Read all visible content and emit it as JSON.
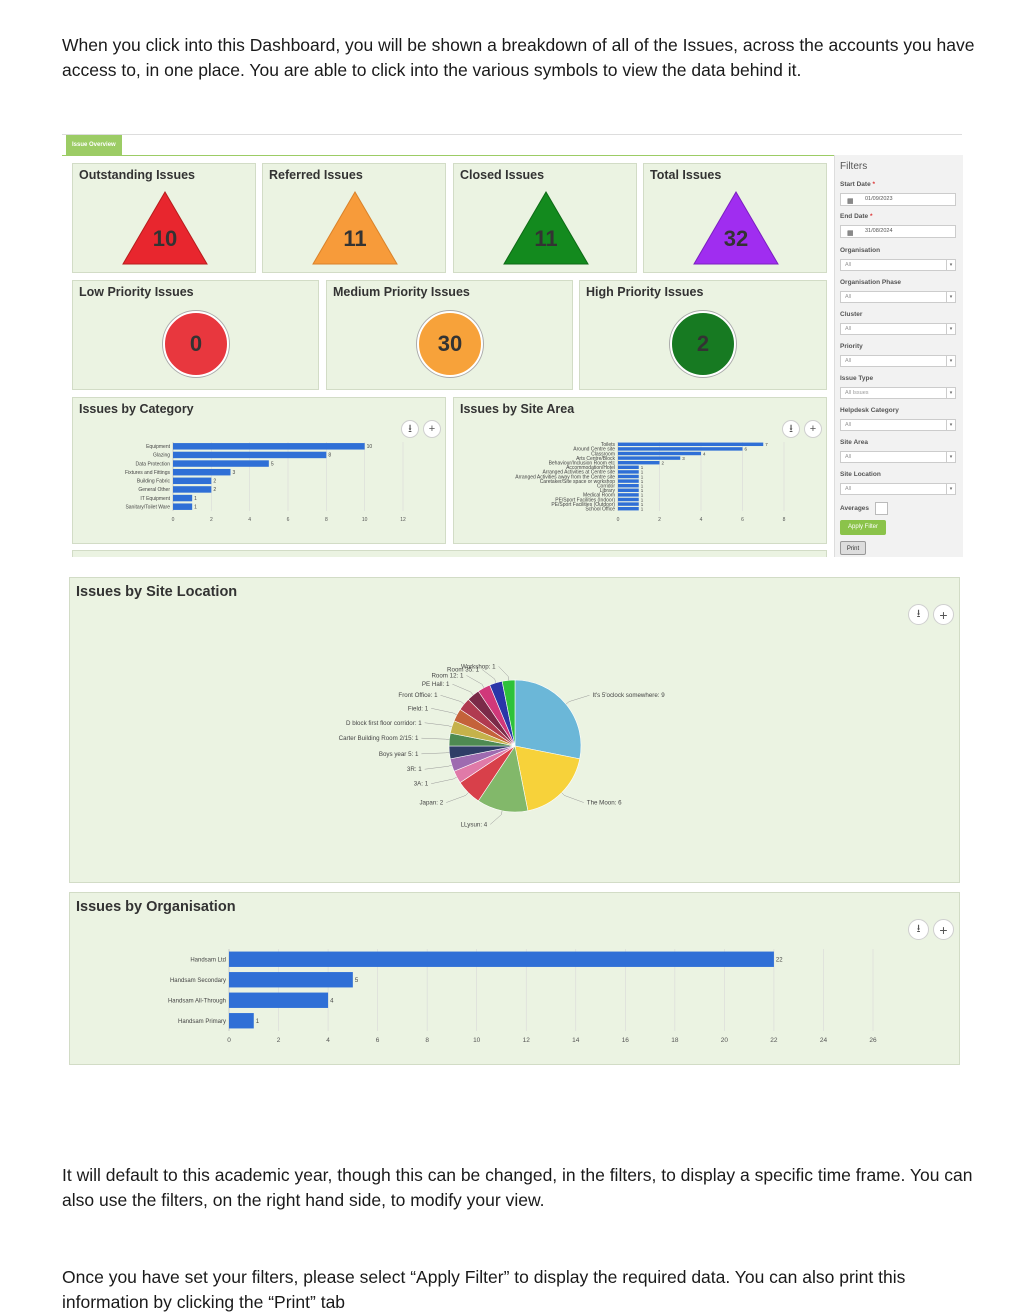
{
  "intro_text": "When you click into this Dashboard, you will be shown a breakdown of all of the Issues, across the accounts you have access to, in one place. You are able to click into the various symbols to view the data behind it.",
  "outro_text_1": "It will default to this academic year, though this can be changed, in the filters, to display a specific time frame. You can also use the filters, on the right hand side, to modify your view.",
  "outro_text_2": "Once you have set your filters, please select “Apply Filter” to display the required data. You can also print this information by clicking the “Print” tab",
  "dashboard": {
    "tab_label": "Issue Overview",
    "tiles": [
      {
        "title": "Outstanding Issues",
        "value": "10",
        "color": "#e8262e"
      },
      {
        "title": "Referred Issues",
        "value": "11",
        "color": "#f79b3a"
      },
      {
        "title": "Closed Issues",
        "value": "11",
        "color": "#138a1e"
      },
      {
        "title": "Total Issues",
        "value": "32",
        "color": "#a02df0"
      }
    ],
    "priority_tiles": [
      {
        "title": "Low Priority Issues",
        "value": "0",
        "color": "#e8373e"
      },
      {
        "title": "Medium Priority Issues",
        "value": "30",
        "color": "#f7a23a"
      },
      {
        "title": "High Priority Issues",
        "value": "2",
        "color": "#177a22"
      }
    ],
    "category_title": "Issues by Category",
    "site_area_title": "Issues by Site Area",
    "filters": {
      "title": "Filters",
      "start_date_label": "Start Date",
      "start_date": "01/09/2023",
      "end_date_label": "End Date",
      "end_date": "31/08/2024",
      "organisation_label": "Organisation",
      "organisation_value": "All",
      "phase_label": "Organisation Phase",
      "phase_value": "All",
      "cluster_label": "Cluster",
      "cluster_value": "All",
      "priority_label": "Priority",
      "priority_value": "All",
      "issue_type_label": "Issue Type",
      "issue_type_value": "All Issues",
      "helpdesk_label": "Helpdesk Category",
      "helpdesk_value": "All",
      "site_area_label": "Site Area",
      "site_area_value": "All",
      "site_location_label": "Site Location",
      "site_location_value": "All",
      "averages_label": "Averages",
      "apply_label": "Apply Filter",
      "print_label": "Print",
      "required_mark": "*"
    }
  },
  "site_location_title": "Issues by Site Location",
  "organisation_title": "Issues by Organisation",
  "chart_data": [
    {
      "type": "bar",
      "orientation": "horizontal",
      "title": "Issues by Category",
      "categories": [
        "Equipment",
        "Glazing",
        "Data Protection",
        "Fixtures and Fittings",
        "Building Fabric",
        "General Other",
        "IT Equipment",
        "Sanitary/Toilet Ware"
      ],
      "values": [
        10,
        8,
        5,
        3,
        2,
        2,
        1,
        1
      ],
      "xlim": [
        0,
        12
      ],
      "xticks": [
        0,
        2,
        4,
        6,
        8,
        10,
        12
      ],
      "color": "#2f6fd6"
    },
    {
      "type": "bar",
      "orientation": "horizontal",
      "title": "Issues by Site Area",
      "categories": [
        "Toilets",
        "Around Centre site",
        "Classroom",
        "Arts Centre/Block",
        "Behaviour/Inclusion Room etc",
        "Accommodation/Hotel",
        "Arranged Activities at Centre site",
        "Arranged Activities away from the Centre site",
        "Caretaker/Site space or workshop",
        "Corridor",
        "Library",
        "Medical Room",
        "PE/Sport Facilities (Indoor)",
        "PE/Sport Facilities (Outdoor)",
        "School Office"
      ],
      "values": [
        7,
        6,
        4,
        3,
        2,
        1,
        1,
        1,
        1,
        1,
        1,
        1,
        1,
        1,
        1
      ],
      "xlim": [
        0,
        8
      ],
      "xticks": [
        0,
        2,
        4,
        6,
        8
      ],
      "color": "#2f6fd6"
    },
    {
      "type": "pie",
      "title": "Issues by Site Location",
      "slices": [
        {
          "label": "It's 5'oclock somewhere",
          "value": 9,
          "color": "#6bb7d8"
        },
        {
          "label": "The Moon",
          "value": 6,
          "color": "#f7d23a"
        },
        {
          "label": "LLysun",
          "value": 4,
          "color": "#82b86a"
        },
        {
          "label": "Japan",
          "value": 2,
          "color": "#d8404a"
        },
        {
          "label": "3A",
          "value": 1,
          "color": "#e07aa8"
        },
        {
          "label": "3R",
          "value": 1,
          "color": "#9e6bb0"
        },
        {
          "label": "Boys year 5",
          "value": 1,
          "color": "#2e3d66"
        },
        {
          "label": "Carter Building Room 2/15",
          "value": 1,
          "color": "#4e8a52"
        },
        {
          "label": "D block first floor corridor",
          "value": 1,
          "color": "#c5b24a"
        },
        {
          "label": "Field",
          "value": 1,
          "color": "#c4623a"
        },
        {
          "label": "Front Office",
          "value": 1,
          "color": "#b03a50"
        },
        {
          "label": "PE Hall",
          "value": 1,
          "color": "#7a2a48"
        },
        {
          "label": "Room 12",
          "value": 1,
          "color": "#d0387a"
        },
        {
          "label": "Room 35",
          "value": 1,
          "color": "#2a36a8"
        },
        {
          "label": "Workshop",
          "value": 1,
          "color": "#2ec23a"
        }
      ]
    },
    {
      "type": "bar",
      "orientation": "horizontal",
      "title": "Issues by Organisation",
      "categories": [
        "Handsam Ltd",
        "Handsam Secondary",
        "Handsam All-Through",
        "Handsam Primary"
      ],
      "values": [
        22,
        5,
        4,
        1
      ],
      "xlim": [
        0,
        26
      ],
      "xticks": [
        0,
        2,
        4,
        6,
        8,
        10,
        12,
        14,
        16,
        18,
        20,
        22,
        24,
        26
      ],
      "color": "#2f6fd6"
    }
  ]
}
